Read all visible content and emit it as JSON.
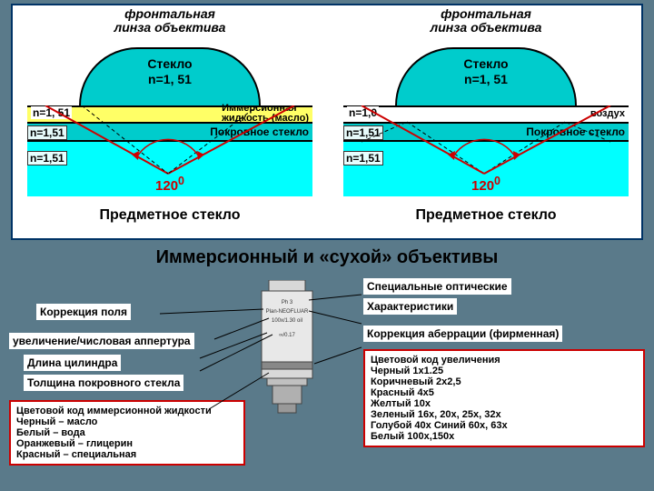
{
  "colors": {
    "background": "#5a7a8a",
    "lens_fill": "#00cccc",
    "immersion_fill": "#ffff66",
    "cover_fill": "#00cccc",
    "slide_fill": "#00ffff",
    "angle_color": "#cc0000",
    "box_border": "#cc0000",
    "panel_border": "#003366",
    "ray_red": "#cc0000",
    "ray_dashed": "#000000"
  },
  "typography": {
    "title_size": 20,
    "label_size": 12,
    "panel_title_size": 14
  },
  "top": {
    "panel_title": "фронтальная\nлинза объектива",
    "lens_label_1": "Стекло",
    "lens_n": "n=1, 51",
    "slide_label": "Предметное стекло",
    "angle": "120",
    "angle_sup": "0",
    "left": {
      "immersion_n": "n=1, 51",
      "immersion_txt": "Иммерсионная\nжидкость (масло)",
      "cover_n": "n=1,51",
      "cover_txt": "Покровное стекло",
      "slide_n": "n=1,51"
    },
    "right": {
      "immersion_n": "n=1,0",
      "immersion_txt": "воздух",
      "cover_n": "n=1,51",
      "cover_txt": "Покровное стекло",
      "slide_n": "n=1,51"
    }
  },
  "title": "Иммерсионный и «сухой» объективы",
  "objective_text": [
    "Ph 3",
    "Plan-NEOFLUAR",
    "100x/1.30 oil",
    "∞/0.17"
  ],
  "left_labels": {
    "field_corr": "Коррекция поля",
    "mag_na": "увеличение/числовая аппертура",
    "tube": "Длина цилиндра",
    "cover": "Толщина покровного стекла",
    "fluid_box_title": "Цветовой код иммерсионной жидкости",
    "fluid_items": [
      "Черный – масло",
      "Белый – вода",
      "Оранжевый – глицерин",
      "Красный – специальная"
    ]
  },
  "right_labels": {
    "optics": "Специальные оптические",
    "chars": "Характеристики",
    "aberr": "Коррекция аберрации (фирменная)",
    "mag_box_title": "Цветовой код увеличения",
    "mag_items": [
      "Черный 1x1.25",
      "Коричневый 2x2,5",
      "Красный 4x5",
      "Желтый 10x",
      "Зеленый 16x, 20x, 25x, 32x",
      "Голубой 40x Синий 60x, 63x",
      "Белый 100x,150x"
    ]
  }
}
